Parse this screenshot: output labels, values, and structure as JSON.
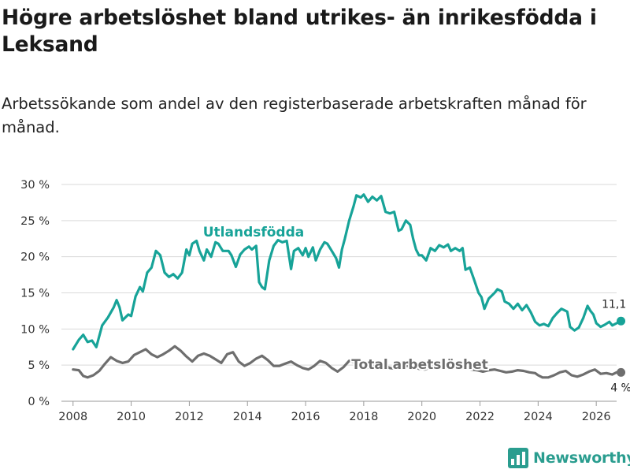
{
  "title": "Högre arbetslöshet bland utrikes- än inrikesfödda i Leksand",
  "subtitle": "Arbetssökande som andel av den registerbaserade arbetskraften månad för månad.",
  "brand": {
    "name": "Newsworthy"
  },
  "colors": {
    "utlandsfodda": "#17a398",
    "total": "#6e6e6e",
    "grid": "#d9d9d9",
    "text": "#333333"
  },
  "chart_data": {
    "type": "line",
    "title": "Högre arbetslöshet bland utrikes- än inrikesfödda i Leksand",
    "subtitle": "Arbetssökande som andel av den registerbaserade arbetskraften månad för månad.",
    "xlabel": "",
    "ylabel": "",
    "xlim": [
      2007.6,
      2026.7
    ],
    "ylim": [
      0,
      30
    ],
    "grid": true,
    "x_ticks": [
      2008,
      2010,
      2012,
      2014,
      2016,
      2018,
      2020,
      2022,
      2024,
      2026
    ],
    "x_tick_labels": [
      "2008",
      "2010",
      "2012",
      "2014",
      "2016",
      "2018",
      "2020",
      "2022",
      "2024",
      "2026"
    ],
    "y_ticks": [
      0,
      5,
      10,
      15,
      20,
      25,
      30
    ],
    "y_tick_labels": [
      "0 %",
      "5 %",
      "10 %",
      "15 %",
      "20 %",
      "25 %",
      "30 %"
    ],
    "series": [
      {
        "name": "Utlandsfödda",
        "label": "Utlandsfödda",
        "end_label": "11,1 %",
        "points": [
          [
            2008.0,
            7.2
          ],
          [
            2008.2,
            8.5
          ],
          [
            2008.35,
            9.2
          ],
          [
            2008.5,
            8.2
          ],
          [
            2008.65,
            8.4
          ],
          [
            2008.8,
            7.5
          ],
          [
            2009.0,
            10.5
          ],
          [
            2009.2,
            11.6
          ],
          [
            2009.4,
            13.0
          ],
          [
            2009.5,
            14.0
          ],
          [
            2009.6,
            13.0
          ],
          [
            2009.7,
            11.2
          ],
          [
            2009.9,
            12.0
          ],
          [
            2010.0,
            11.8
          ],
          [
            2010.15,
            14.5
          ],
          [
            2010.3,
            15.8
          ],
          [
            2010.4,
            15.2
          ],
          [
            2010.55,
            17.8
          ],
          [
            2010.7,
            18.5
          ],
          [
            2010.85,
            20.8
          ],
          [
            2011.0,
            20.2
          ],
          [
            2011.15,
            17.8
          ],
          [
            2011.3,
            17.2
          ],
          [
            2011.45,
            17.6
          ],
          [
            2011.6,
            17.0
          ],
          [
            2011.75,
            17.8
          ],
          [
            2011.9,
            21.0
          ],
          [
            2012.0,
            20.2
          ],
          [
            2012.1,
            21.8
          ],
          [
            2012.25,
            22.2
          ],
          [
            2012.35,
            20.8
          ],
          [
            2012.5,
            19.5
          ],
          [
            2012.6,
            21.0
          ],
          [
            2012.75,
            20.0
          ],
          [
            2012.9,
            22.0
          ],
          [
            2013.0,
            21.8
          ],
          [
            2013.15,
            20.8
          ],
          [
            2013.35,
            20.8
          ],
          [
            2013.45,
            20.2
          ],
          [
            2013.6,
            18.6
          ],
          [
            2013.75,
            20.3
          ],
          [
            2013.9,
            21.0
          ],
          [
            2014.05,
            21.4
          ],
          [
            2014.15,
            21.0
          ],
          [
            2014.3,
            21.5
          ],
          [
            2014.4,
            16.5
          ],
          [
            2014.5,
            15.8
          ],
          [
            2014.6,
            15.5
          ],
          [
            2014.75,
            19.5
          ],
          [
            2014.9,
            21.5
          ],
          [
            2015.05,
            22.3
          ],
          [
            2015.2,
            22.0
          ],
          [
            2015.35,
            22.2
          ],
          [
            2015.5,
            18.3
          ],
          [
            2015.6,
            20.8
          ],
          [
            2015.75,
            21.2
          ],
          [
            2015.9,
            20.2
          ],
          [
            2016.0,
            21.2
          ],
          [
            2016.1,
            20.0
          ],
          [
            2016.25,
            21.3
          ],
          [
            2016.35,
            19.5
          ],
          [
            2016.5,
            21.0
          ],
          [
            2016.65,
            22.0
          ],
          [
            2016.75,
            21.8
          ],
          [
            2016.9,
            20.8
          ],
          [
            2017.05,
            19.8
          ],
          [
            2017.15,
            18.5
          ],
          [
            2017.25,
            21.0
          ],
          [
            2017.35,
            22.5
          ],
          [
            2017.5,
            25.0
          ],
          [
            2017.65,
            27.0
          ],
          [
            2017.75,
            28.5
          ],
          [
            2017.9,
            28.2
          ],
          [
            2018.0,
            28.6
          ],
          [
            2018.15,
            27.6
          ],
          [
            2018.3,
            28.3
          ],
          [
            2018.45,
            27.8
          ],
          [
            2018.6,
            28.4
          ],
          [
            2018.75,
            26.2
          ],
          [
            2018.9,
            26.0
          ],
          [
            2019.05,
            26.2
          ],
          [
            2019.2,
            23.6
          ],
          [
            2019.3,
            23.8
          ],
          [
            2019.45,
            25.0
          ],
          [
            2019.6,
            24.4
          ],
          [
            2019.7,
            22.5
          ],
          [
            2019.8,
            21.0
          ],
          [
            2019.9,
            20.2
          ],
          [
            2020.0,
            20.2
          ],
          [
            2020.15,
            19.5
          ],
          [
            2020.3,
            21.2
          ],
          [
            2020.45,
            20.8
          ],
          [
            2020.6,
            21.6
          ],
          [
            2020.75,
            21.3
          ],
          [
            2020.9,
            21.7
          ],
          [
            2021.0,
            20.8
          ],
          [
            2021.15,
            21.2
          ],
          [
            2021.3,
            20.8
          ],
          [
            2021.4,
            21.2
          ],
          [
            2021.5,
            18.2
          ],
          [
            2021.65,
            18.5
          ],
          [
            2021.8,
            16.8
          ],
          [
            2021.95,
            15.0
          ],
          [
            2022.05,
            14.4
          ],
          [
            2022.15,
            12.8
          ],
          [
            2022.3,
            14.2
          ],
          [
            2022.5,
            15.0
          ],
          [
            2022.6,
            15.5
          ],
          [
            2022.75,
            15.2
          ],
          [
            2022.85,
            13.8
          ],
          [
            2023.0,
            13.5
          ],
          [
            2023.15,
            12.8
          ],
          [
            2023.3,
            13.5
          ],
          [
            2023.45,
            12.6
          ],
          [
            2023.6,
            13.3
          ],
          [
            2023.75,
            12.3
          ],
          [
            2023.9,
            11.0
          ],
          [
            2024.05,
            10.5
          ],
          [
            2024.2,
            10.7
          ],
          [
            2024.35,
            10.4
          ],
          [
            2024.5,
            11.5
          ],
          [
            2024.65,
            12.2
          ],
          [
            2024.8,
            12.8
          ],
          [
            2025.0,
            12.4
          ],
          [
            2025.1,
            10.3
          ],
          [
            2025.25,
            9.8
          ],
          [
            2025.4,
            10.2
          ],
          [
            2025.55,
            11.5
          ],
          [
            2025.7,
            13.2
          ],
          [
            2025.8,
            12.5
          ],
          [
            2025.9,
            12.0
          ],
          [
            2026.0,
            10.8
          ],
          [
            2026.15,
            10.3
          ],
          [
            2026.3,
            10.6
          ],
          [
            2026.45,
            11.0
          ],
          [
            2026.55,
            10.5
          ],
          [
            2026.7,
            10.8
          ],
          [
            2026.85,
            11.1
          ]
        ]
      },
      {
        "name": "Total arbetslöshet",
        "label": "Total arbetslöshet",
        "end_label": "4 %",
        "points": [
          [
            2008.0,
            4.4
          ],
          [
            2008.2,
            4.3
          ],
          [
            2008.35,
            3.5
          ],
          [
            2008.5,
            3.3
          ],
          [
            2008.7,
            3.6
          ],
          [
            2008.9,
            4.2
          ],
          [
            2009.1,
            5.2
          ],
          [
            2009.3,
            6.1
          ],
          [
            2009.5,
            5.6
          ],
          [
            2009.7,
            5.3
          ],
          [
            2009.9,
            5.5
          ],
          [
            2010.1,
            6.4
          ],
          [
            2010.3,
            6.8
          ],
          [
            2010.5,
            7.2
          ],
          [
            2010.7,
            6.5
          ],
          [
            2010.9,
            6.1
          ],
          [
            2011.1,
            6.5
          ],
          [
            2011.3,
            7.0
          ],
          [
            2011.5,
            7.6
          ],
          [
            2011.7,
            7.0
          ],
          [
            2011.9,
            6.2
          ],
          [
            2012.1,
            5.5
          ],
          [
            2012.3,
            6.3
          ],
          [
            2012.5,
            6.6
          ],
          [
            2012.7,
            6.3
          ],
          [
            2012.9,
            5.8
          ],
          [
            2013.1,
            5.3
          ],
          [
            2013.3,
            6.5
          ],
          [
            2013.5,
            6.8
          ],
          [
            2013.7,
            5.5
          ],
          [
            2013.9,
            4.9
          ],
          [
            2014.1,
            5.3
          ],
          [
            2014.3,
            5.9
          ],
          [
            2014.5,
            6.3
          ],
          [
            2014.7,
            5.7
          ],
          [
            2014.9,
            4.9
          ],
          [
            2015.1,
            4.9
          ],
          [
            2015.3,
            5.2
          ],
          [
            2015.5,
            5.5
          ],
          [
            2015.7,
            5.0
          ],
          [
            2015.9,
            4.6
          ],
          [
            2016.1,
            4.4
          ],
          [
            2016.3,
            4.9
          ],
          [
            2016.5,
            5.6
          ],
          [
            2016.7,
            5.3
          ],
          [
            2016.9,
            4.6
          ],
          [
            2017.1,
            4.1
          ],
          [
            2017.3,
            4.7
          ],
          [
            2017.5,
            5.6
          ],
          [
            2017.7,
            5.4
          ],
          [
            2017.9,
            4.8
          ],
          [
            2018.1,
            4.6
          ],
          [
            2018.3,
            5.0
          ],
          [
            2018.5,
            5.3
          ],
          [
            2018.7,
            5.0
          ],
          [
            2018.9,
            4.6
          ],
          [
            2019.1,
            4.5
          ],
          [
            2019.3,
            4.6
          ],
          [
            2019.5,
            4.9
          ],
          [
            2019.7,
            4.9
          ],
          [
            2019.9,
            4.5
          ],
          [
            2020.1,
            4.4
          ],
          [
            2020.3,
            4.7
          ],
          [
            2020.5,
            5.0
          ],
          [
            2020.7,
            4.8
          ],
          [
            2020.9,
            4.6
          ],
          [
            2021.1,
            4.6
          ],
          [
            2021.3,
            4.9
          ],
          [
            2021.5,
            4.7
          ],
          [
            2021.7,
            4.4
          ],
          [
            2021.9,
            4.3
          ],
          [
            2022.1,
            4.1
          ],
          [
            2022.3,
            4.3
          ],
          [
            2022.5,
            4.4
          ],
          [
            2022.7,
            4.2
          ],
          [
            2022.9,
            4.0
          ],
          [
            2023.1,
            4.1
          ],
          [
            2023.3,
            4.3
          ],
          [
            2023.5,
            4.2
          ],
          [
            2023.7,
            4.0
          ],
          [
            2023.9,
            3.9
          ],
          [
            2024.0,
            3.6
          ],
          [
            2024.15,
            3.3
          ],
          [
            2024.35,
            3.3
          ],
          [
            2024.55,
            3.6
          ],
          [
            2024.75,
            4.0
          ],
          [
            2024.95,
            4.2
          ],
          [
            2025.15,
            3.6
          ],
          [
            2025.35,
            3.4
          ],
          [
            2025.55,
            3.7
          ],
          [
            2025.75,
            4.1
          ],
          [
            2025.95,
            4.4
          ],
          [
            2026.15,
            3.8
          ],
          [
            2026.35,
            3.9
          ],
          [
            2026.55,
            3.7
          ],
          [
            2026.7,
            4.0
          ],
          [
            2026.85,
            4.0
          ]
        ]
      }
    ]
  }
}
